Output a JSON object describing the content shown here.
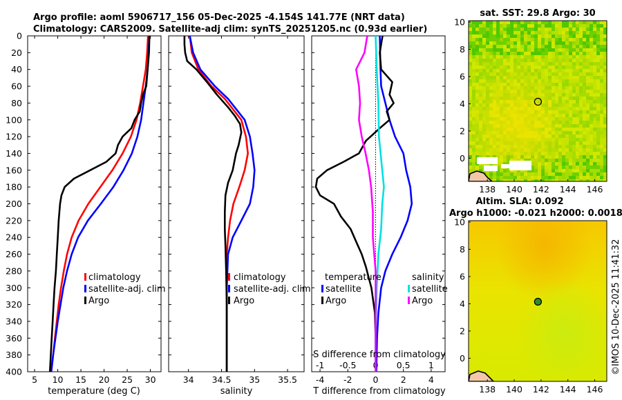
{
  "figure": {
    "title_line1": "Argo profile: aoml 5906717_156 05-Dec-2025 -4.154S 141.77E (NRT data)",
    "title_line2": "Climatology: CARS2009. Satellite-adj clim: synTS_20251205.nc (0.93d earlier)",
    "side_text": "©IMOS 10-Dec-2025 11:41:32"
  },
  "chart_data": [
    {
      "type": "line",
      "id": "temperature",
      "xlabel": "temperature (deg C)",
      "ylabel": "",
      "xlim": [
        3.5,
        32.3
      ],
      "ylim": [
        400,
        0
      ],
      "xticks": [
        5,
        10,
        15,
        20,
        25,
        30
      ],
      "yticks": [
        0,
        20,
        40,
        60,
        80,
        100,
        120,
        140,
        160,
        180,
        200,
        220,
        240,
        260,
        280,
        300,
        320,
        340,
        360,
        380,
        400
      ],
      "legend": [
        "climatology",
        "satellite-adj. clim",
        "Argo"
      ],
      "legend_position": "lower-right",
      "series": [
        {
          "name": "climatology",
          "color": "#ff0000",
          "points": [
            [
              29.5,
              0
            ],
            [
              29.3,
              20
            ],
            [
              29.0,
              40
            ],
            [
              28.4,
              60
            ],
            [
              27.8,
              80
            ],
            [
              27.0,
              100
            ],
            [
              25.8,
              120
            ],
            [
              24.0,
              140
            ],
            [
              21.8,
              160
            ],
            [
              19.2,
              180
            ],
            [
              16.6,
              200
            ],
            [
              14.5,
              220
            ],
            [
              13.0,
              240
            ],
            [
              12.0,
              260
            ],
            [
              11.3,
              280
            ],
            [
              10.7,
              300
            ],
            [
              10.2,
              320
            ],
            [
              9.8,
              340
            ],
            [
              9.4,
              360
            ],
            [
              9.0,
              380
            ],
            [
              8.6,
              400
            ]
          ]
        },
        {
          "name": "satellite-adj. clim",
          "color": "#0000ff",
          "points": [
            [
              29.8,
              0
            ],
            [
              29.6,
              20
            ],
            [
              29.4,
              40
            ],
            [
              29.0,
              60
            ],
            [
              28.5,
              80
            ],
            [
              28.0,
              100
            ],
            [
              27.2,
              120
            ],
            [
              26.0,
              140
            ],
            [
              24.2,
              160
            ],
            [
              22.0,
              180
            ],
            [
              19.3,
              200
            ],
            [
              16.5,
              220
            ],
            [
              14.4,
              240
            ],
            [
              13.0,
              260
            ],
            [
              12.0,
              280
            ],
            [
              11.2,
              300
            ],
            [
              10.6,
              320
            ],
            [
              10.0,
              340
            ],
            [
              9.5,
              360
            ],
            [
              9.0,
              380
            ],
            [
              8.6,
              400
            ]
          ]
        },
        {
          "name": "Argo",
          "color": "#000000",
          "points": [
            [
              29.8,
              0
            ],
            [
              29.7,
              20
            ],
            [
              29.4,
              40
            ],
            [
              29.1,
              60
            ],
            [
              28.4,
              70
            ],
            [
              28.0,
              80
            ],
            [
              27.7,
              90
            ],
            [
              26.6,
              100
            ],
            [
              25.9,
              110
            ],
            [
              24.0,
              120
            ],
            [
              23.0,
              130
            ],
            [
              22.5,
              140
            ],
            [
              20.5,
              150
            ],
            [
              17.0,
              160
            ],
            [
              13.5,
              170
            ],
            [
              11.5,
              180
            ],
            [
              10.8,
              190
            ],
            [
              10.5,
              200
            ],
            [
              10.2,
              220
            ],
            [
              10.0,
              240
            ],
            [
              9.8,
              260
            ],
            [
              9.6,
              280
            ],
            [
              9.3,
              300
            ],
            [
              9.1,
              320
            ],
            [
              8.9,
              340
            ],
            [
              8.7,
              360
            ],
            [
              8.5,
              380
            ],
            [
              8.3,
              400
            ]
          ]
        }
      ]
    },
    {
      "type": "line",
      "id": "salinity",
      "xlabel": "salinity",
      "ylabel": "",
      "xlim": [
        33.7,
        35.75
      ],
      "ylim": [
        400,
        0
      ],
      "xticks": [
        34,
        34.5,
        35,
        35.5
      ],
      "legend": [
        "climatology",
        "satellite-adj. clim",
        "Argo"
      ],
      "legend_position": "lower-right",
      "series": [
        {
          "name": "climatology",
          "color": "#ff0000",
          "points": [
            [
              34.02,
              0
            ],
            [
              34.05,
              20
            ],
            [
              34.15,
              40
            ],
            [
              34.35,
              60
            ],
            [
              34.55,
              75
            ],
            [
              34.7,
              90
            ],
            [
              34.8,
              100
            ],
            [
              34.87,
              120
            ],
            [
              34.9,
              140
            ],
            [
              34.85,
              160
            ],
            [
              34.77,
              180
            ],
            [
              34.68,
              200
            ],
            [
              34.63,
              220
            ],
            [
              34.6,
              240
            ],
            [
              34.58,
              260
            ],
            [
              34.58,
              300
            ],
            [
              34.58,
              350
            ],
            [
              34.58,
              400
            ]
          ]
        },
        {
          "name": "satellite-adj. clim",
          "color": "#0000ff",
          "points": [
            [
              34.02,
              0
            ],
            [
              34.07,
              20
            ],
            [
              34.18,
              40
            ],
            [
              34.4,
              60
            ],
            [
              34.6,
              75
            ],
            [
              34.75,
              90
            ],
            [
              34.85,
              100
            ],
            [
              34.93,
              120
            ],
            [
              34.97,
              140
            ],
            [
              35.0,
              160
            ],
            [
              34.98,
              180
            ],
            [
              34.93,
              200
            ],
            [
              34.8,
              220
            ],
            [
              34.67,
              240
            ],
            [
              34.6,
              260
            ],
            [
              34.58,
              300
            ],
            [
              34.58,
              350
            ],
            [
              34.58,
              400
            ]
          ]
        },
        {
          "name": "Argo",
          "color": "#000000",
          "points": [
            [
              33.94,
              0
            ],
            [
              33.94,
              10
            ],
            [
              33.95,
              20
            ],
            [
              33.98,
              30
            ],
            [
              34.12,
              40
            ],
            [
              34.28,
              55
            ],
            [
              34.43,
              70
            ],
            [
              34.6,
              85
            ],
            [
              34.7,
              95
            ],
            [
              34.78,
              105
            ],
            [
              34.8,
              115
            ],
            [
              34.76,
              130
            ],
            [
              34.72,
              140
            ],
            [
              34.67,
              160
            ],
            [
              34.6,
              175
            ],
            [
              34.56,
              190
            ],
            [
              34.55,
              210
            ],
            [
              34.55,
              230
            ],
            [
              34.56,
              250
            ],
            [
              34.57,
              280
            ],
            [
              34.58,
              320
            ],
            [
              34.58,
              400
            ]
          ]
        }
      ]
    },
    {
      "type": "line",
      "id": "differences",
      "xlabel": "T difference from climatology",
      "xlabel_top": "S difference from climatology",
      "xlim": [
        -4.6,
        5
      ],
      "ylim": [
        400,
        0
      ],
      "xticks": [
        -4,
        -2,
        0,
        2,
        4
      ],
      "xticks_top": [
        -1,
        -0.5,
        0,
        0.5,
        1
      ],
      "legend_temperature_title": "temperature",
      "legend_salinity_title": "salinity",
      "legend_temperature": [
        "satellite",
        "Argo"
      ],
      "legend_salinity": [
        "satellite",
        "Argo"
      ],
      "legend_position": "lower",
      "series": [
        {
          "name": "T satellite",
          "color": "#0000ff",
          "points": [
            [
              0.3,
              0
            ],
            [
              0.35,
              40
            ],
            [
              0.4,
              60
            ],
            [
              0.7,
              80
            ],
            [
              1.0,
              100
            ],
            [
              1.4,
              120
            ],
            [
              2.0,
              140
            ],
            [
              2.2,
              160
            ],
            [
              2.5,
              180
            ],
            [
              2.6,
              200
            ],
            [
              2.3,
              220
            ],
            [
              1.8,
              240
            ],
            [
              1.2,
              260
            ],
            [
              0.7,
              280
            ],
            [
              0.4,
              300
            ],
            [
              0.2,
              330
            ],
            [
              0.1,
              360
            ],
            [
              0.05,
              400
            ]
          ]
        },
        {
          "name": "T Argo",
          "color": "#000000",
          "points": [
            [
              0.5,
              0
            ],
            [
              0.3,
              20
            ],
            [
              0.4,
              40
            ],
            [
              1.2,
              55
            ],
            [
              1.0,
              70
            ],
            [
              1.3,
              80
            ],
            [
              0.8,
              90
            ],
            [
              1.0,
              100
            ],
            [
              0.3,
              110
            ],
            [
              -0.7,
              125
            ],
            [
              -1.2,
              140
            ],
            [
              -2.3,
              150
            ],
            [
              -3.5,
              160
            ],
            [
              -4.2,
              170
            ],
            [
              -4.3,
              180
            ],
            [
              -4.0,
              190
            ],
            [
              -3.0,
              200
            ],
            [
              -2.5,
              215
            ],
            [
              -1.8,
              230
            ],
            [
              -1.4,
              245
            ],
            [
              -1.0,
              260
            ],
            [
              -0.7,
              275
            ],
            [
              -0.3,
              300
            ],
            [
              -0.05,
              330
            ],
            [
              0.0,
              360
            ],
            [
              0.0,
              400
            ]
          ]
        },
        {
          "name": "S satellite",
          "color": "#00e0e0",
          "points": [
            [
              0.0,
              0
            ],
            [
              0.02,
              40
            ],
            [
              0.05,
              80
            ],
            [
              0.06,
              120
            ],
            [
              0.12,
              160
            ],
            [
              0.15,
              180
            ],
            [
              0.12,
              200
            ],
            [
              0.1,
              230
            ],
            [
              0.05,
              260
            ],
            [
              0.02,
              300
            ],
            [
              0.0,
              350
            ],
            [
              0.0,
              400
            ]
          ]
        },
        {
          "name": "S Argo",
          "color": "#ff00ff",
          "points": [
            [
              -0.15,
              0
            ],
            [
              -0.2,
              20
            ],
            [
              -0.35,
              40
            ],
            [
              -0.3,
              60
            ],
            [
              -0.28,
              80
            ],
            [
              -0.3,
              100
            ],
            [
              -0.25,
              120
            ],
            [
              -0.18,
              140
            ],
            [
              -0.12,
              160
            ],
            [
              -0.08,
              180
            ],
            [
              -0.05,
              210
            ],
            [
              -0.05,
              240
            ],
            [
              0.0,
              280
            ],
            [
              0.0,
              320
            ],
            [
              0.0,
              400
            ]
          ]
        }
      ]
    },
    {
      "type": "heatmap",
      "id": "sst_map",
      "title": "sat. SST: 29.8 Argo: 30",
      "xlim": [
        136.6,
        146.9
      ],
      "ylim": [
        -1.7,
        10.1
      ],
      "xticks": [
        138,
        140,
        142,
        144,
        146
      ],
      "yticks": [
        0,
        2,
        4,
        6,
        8,
        10
      ],
      "marker": [
        141.77,
        4.15
      ]
    },
    {
      "type": "heatmap",
      "id": "sla_map",
      "title": "Altim. SLA: 0.092",
      "subtitle": "Argo h1000: -0.021 h2000: 0.0018",
      "xlim": [
        136.6,
        146.9
      ],
      "ylim": [
        -1.7,
        10.1
      ],
      "xticks": [
        138,
        140,
        142,
        144,
        146
      ],
      "yticks": [
        0,
        2,
        4,
        6,
        8,
        10
      ],
      "marker": [
        141.77,
        4.15
      ]
    }
  ]
}
